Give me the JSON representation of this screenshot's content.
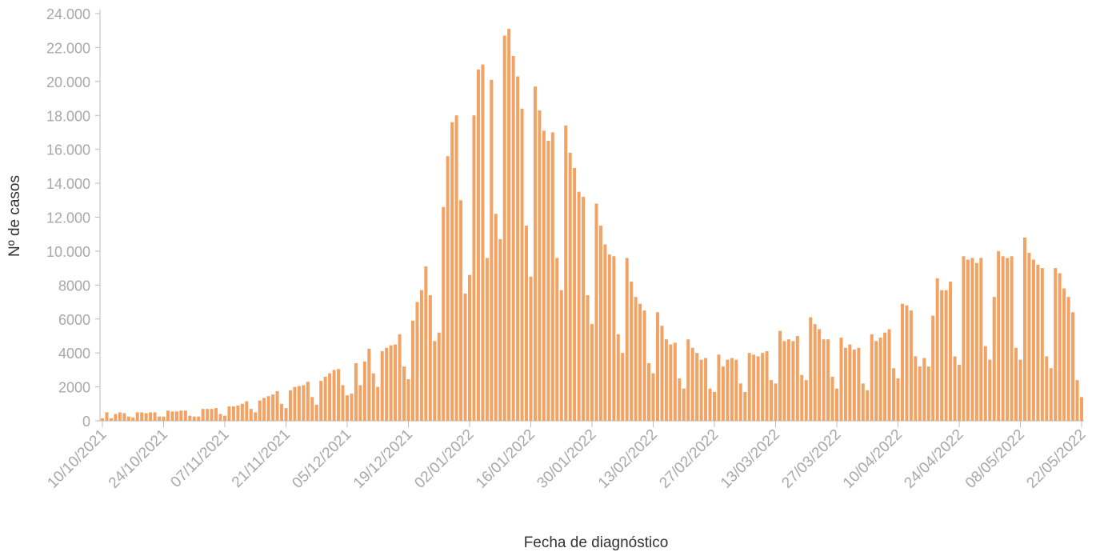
{
  "chart_data": {
    "type": "bar",
    "x_label": "Fecha de diagnóstico",
    "y_label": "Nº de casos",
    "color": "#f2a262",
    "categories": [
      "10/10/2021",
      null,
      null,
      null,
      null,
      null,
      null,
      null,
      null,
      null,
      null,
      null,
      null,
      null,
      "24/10/2021",
      null,
      null,
      null,
      null,
      null,
      null,
      null,
      null,
      null,
      null,
      null,
      null,
      null,
      "07/11/2021",
      null,
      null,
      null,
      null,
      null,
      null,
      null,
      null,
      null,
      null,
      null,
      null,
      null,
      "21/11/2021",
      null,
      null,
      null,
      null,
      null,
      null,
      null,
      null,
      null,
      null,
      null,
      null,
      null,
      "05/12/2021",
      null,
      null,
      null,
      null,
      null,
      null,
      null,
      null,
      null,
      null,
      null,
      null,
      null,
      "19/12/2021",
      null,
      null,
      null,
      null,
      null,
      null,
      null,
      null,
      null,
      null,
      null,
      null,
      null,
      "02/01/2022",
      null,
      null,
      null,
      null,
      null,
      null,
      null,
      null,
      null,
      null,
      null,
      null,
      null,
      "16/01/2022",
      null,
      null,
      null,
      null,
      null,
      null,
      null,
      null,
      null,
      null,
      null,
      null,
      null,
      "30/01/2022",
      null,
      null,
      null,
      null,
      null,
      null,
      null,
      null,
      null,
      null,
      null,
      null,
      null,
      "13/02/2022",
      null,
      null,
      null,
      null,
      null,
      null,
      null,
      null,
      null,
      null,
      null,
      null,
      null,
      "27/02/2022",
      null,
      null,
      null,
      null,
      null,
      null,
      null,
      null,
      null,
      null,
      null,
      null,
      null,
      "13/03/2022",
      null,
      null,
      null,
      null,
      null,
      null,
      null,
      null,
      null,
      null,
      null,
      null,
      null,
      "27/03/2022",
      null,
      null,
      null,
      null,
      null,
      null,
      null,
      null,
      null,
      null,
      null,
      null,
      null,
      "10/04/2022",
      null,
      null,
      null,
      null,
      null,
      null,
      null,
      null,
      null,
      null,
      null,
      null,
      null,
      "24/04/2022",
      null,
      null,
      null,
      null,
      null,
      null,
      null,
      null,
      null,
      null,
      null,
      null,
      null,
      "08/05/2022",
      null,
      null,
      null,
      null,
      null,
      null,
      null,
      null,
      null,
      null,
      null,
      null,
      null,
      "22/05/2022"
    ],
    "values": [
      150,
      500,
      150,
      400,
      500,
      450,
      250,
      200,
      500,
      500,
      450,
      500,
      500,
      250,
      250,
      600,
      550,
      550,
      600,
      600,
      300,
      250,
      250,
      700,
      700,
      700,
      750,
      400,
      300,
      850,
      850,
      900,
      1000,
      1150,
      700,
      500,
      1200,
      1350,
      1450,
      1550,
      1750,
      1000,
      750,
      1800,
      2000,
      2050,
      2100,
      2300,
      1400,
      950,
      2350,
      2600,
      2800,
      3000,
      3050,
      2100,
      1500,
      1600,
      3400,
      2100,
      3500,
      4250,
      2800,
      2000,
      4100,
      4300,
      4450,
      4500,
      5100,
      3200,
      2450,
      5900,
      7000,
      7700,
      9100,
      7400,
      4700,
      5200,
      12600,
      15600,
      17600,
      18000,
      13000,
      7500,
      8600,
      18000,
      20700,
      21000,
      9600,
      20100,
      12200,
      10700,
      22700,
      23100,
      21500,
      20300,
      18400,
      11500,
      8500,
      19700,
      18300,
      17100,
      16500,
      17000,
      9600,
      7700,
      17400,
      15800,
      14900,
      13500,
      13200,
      7400,
      5700,
      12800,
      11500,
      10400,
      9800,
      9700,
      5100,
      4000,
      9600,
      8200,
      7300,
      6900,
      6500,
      3400,
      2800,
      6400,
      5600,
      4800,
      4500,
      4600,
      2500,
      1900,
      4800,
      4300,
      4000,
      3600,
      3700,
      1900,
      1700,
      3900,
      3200,
      3600,
      3700,
      3600,
      2200,
      1700,
      4000,
      3900,
      3800,
      4000,
      4100,
      2400,
      2200,
      5300,
      4700,
      4800,
      4700,
      5000,
      2700,
      2400,
      6100,
      5700,
      5400,
      4800,
      4800,
      2600,
      1900,
      4900,
      4300,
      4500,
      4200,
      4300,
      2200,
      1800,
      5100,
      4700,
      4900,
      5200,
      5400,
      3100,
      2500,
      6900,
      6800,
      6500,
      3800,
      3200,
      3700,
      3200,
      6200,
      8400,
      7700,
      7700,
      8200,
      3800,
      3300,
      9700,
      9500,
      9600,
      9300,
      9600,
      4400,
      3600,
      7300,
      10000,
      9700,
      9600,
      9700,
      4300,
      3600,
      10800,
      9900,
      9500,
      9200,
      9000,
      3800,
      3100,
      9000,
      8700,
      7800,
      7300,
      6400,
      2400,
      1400
    ],
    "ylim": [
      0,
      24000
    ],
    "yticks": [
      0,
      2000,
      4000,
      6000,
      8000,
      {
        "value": 10000,
        "label": "10.000"
      },
      {
        "value": 12000,
        "label": "12.000"
      },
      {
        "value": 14000,
        "label": "14.000"
      },
      {
        "value": 16000,
        "label": "16.000"
      },
      {
        "value": 18000,
        "label": "18.000"
      },
      {
        "value": 20000,
        "label": "20.000"
      },
      {
        "value": 22000,
        "label": "22.000"
      },
      {
        "value": 24000,
        "label": "24.000"
      }
    ]
  }
}
